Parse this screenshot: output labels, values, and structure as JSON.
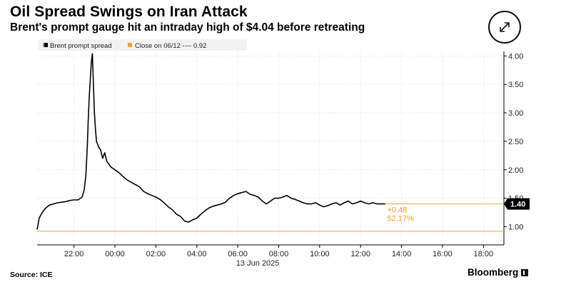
{
  "header": {
    "title": "Oil Spread Swings on Iran Attack",
    "subtitle": "Brent's prompt gauge hit an intraday high of $4.04 before retreating"
  },
  "expand_icon": "expand-arrows-icon",
  "footer": {
    "source": "Source: ICE",
    "brand": "Bloomberg"
  },
  "colors": {
    "line": "#000000",
    "reference": "#f0a030",
    "annotation": "#e8a12e",
    "last_badge_bg": "#000000",
    "grid": "#cccccc"
  },
  "chart_data": {
    "type": "line",
    "title": "Oil Spread Swings on Iran Attack",
    "subtitle": "Brent's prompt gauge hit an intraday high of $4.04 before retreating",
    "legend": [
      {
        "name": "Brent prompt spread",
        "color": "#000000"
      },
      {
        "name": "Close on 06/12 ---- 0.92",
        "color": "#f0a030"
      }
    ],
    "x_unit": "hours since 00:00 on 13 Jun 2025",
    "xlim": [
      -3.8,
      19.0
    ],
    "ylim": [
      0.68,
      4.08
    ],
    "x_ticks": [
      {
        "x": -2,
        "label": "22:00"
      },
      {
        "x": 0,
        "label": "00:00"
      },
      {
        "x": 2,
        "label": "02:00"
      },
      {
        "x": 4,
        "label": "04:00"
      },
      {
        "x": 6,
        "label": "06:00"
      },
      {
        "x": 8,
        "label": "08:00"
      },
      {
        "x": 10,
        "label": "10:00"
      },
      {
        "x": 12,
        "label": "12:00"
      },
      {
        "x": 14,
        "label": "14:00"
      },
      {
        "x": 16,
        "label": "16:00"
      },
      {
        "x": 18,
        "label": "18:00"
      }
    ],
    "x_sublabel": "13 Jun 2025",
    "y_ticks": [
      {
        "y": 1.0,
        "label": "1.00"
      },
      {
        "y": 1.5,
        "label": "1.50"
      },
      {
        "y": 2.0,
        "label": "2.00"
      },
      {
        "y": 2.5,
        "label": "2.50"
      },
      {
        "y": 3.0,
        "label": "3.00"
      },
      {
        "y": 3.5,
        "label": "3.50"
      },
      {
        "y": 4.0,
        "label": "4.00"
      }
    ],
    "series": [
      {
        "name": "Brent prompt spread",
        "x": [
          -3.8,
          -3.7,
          -3.55,
          -3.4,
          -3.2,
          -3.0,
          -2.8,
          -2.6,
          -2.4,
          -2.2,
          -2.0,
          -1.8,
          -1.6,
          -1.5,
          -1.42,
          -1.35,
          -1.3,
          -1.25,
          -1.2,
          -1.15,
          -1.1,
          -1.05,
          -1.0,
          -0.95,
          -0.9,
          -0.8,
          -0.7,
          -0.6,
          -0.5,
          -0.4,
          -0.3,
          -0.2,
          0.0,
          0.2,
          0.4,
          0.6,
          0.8,
          1.0,
          1.2,
          1.4,
          1.6,
          1.8,
          2.0,
          2.2,
          2.4,
          2.6,
          2.8,
          3.0,
          3.2,
          3.4,
          3.6,
          3.8,
          4.0,
          4.2,
          4.4,
          4.6,
          4.8,
          5.0,
          5.2,
          5.4,
          5.6,
          5.8,
          6.0,
          6.2,
          6.4,
          6.6,
          6.8,
          7.0,
          7.2,
          7.4,
          7.6,
          7.8,
          8.0,
          8.2,
          8.4,
          8.6,
          8.8,
          9.0,
          9.2,
          9.4,
          9.6,
          9.8,
          10.0,
          10.2,
          10.4,
          10.6,
          10.8,
          11.0,
          11.2,
          11.4,
          11.6,
          11.8,
          12.0,
          12.2,
          12.4,
          12.6,
          12.8,
          13.0,
          13.2
        ],
        "y": [
          0.95,
          1.15,
          1.25,
          1.32,
          1.38,
          1.4,
          1.42,
          1.43,
          1.44,
          1.46,
          1.47,
          1.47,
          1.52,
          1.65,
          1.9,
          2.4,
          2.9,
          3.3,
          3.6,
          3.9,
          4.04,
          3.5,
          3.0,
          2.7,
          2.5,
          2.4,
          2.35,
          2.2,
          2.3,
          2.15,
          2.1,
          2.05,
          2.0,
          1.95,
          1.88,
          1.82,
          1.78,
          1.74,
          1.7,
          1.62,
          1.58,
          1.55,
          1.52,
          1.48,
          1.42,
          1.35,
          1.3,
          1.22,
          1.18,
          1.1,
          1.08,
          1.12,
          1.15,
          1.22,
          1.28,
          1.33,
          1.36,
          1.38,
          1.4,
          1.43,
          1.5,
          1.55,
          1.58,
          1.6,
          1.62,
          1.57,
          1.55,
          1.52,
          1.45,
          1.4,
          1.45,
          1.5,
          1.5,
          1.52,
          1.55,
          1.5,
          1.48,
          1.45,
          1.42,
          1.4,
          1.4,
          1.42,
          1.38,
          1.35,
          1.37,
          1.4,
          1.42,
          1.38,
          1.42,
          1.45,
          1.4,
          1.42,
          1.45,
          1.42,
          1.4,
          1.42,
          1.4,
          1.4,
          1.4
        ]
      }
    ],
    "reference_line": {
      "name": "Close on 06/12",
      "value": 0.92
    },
    "last_value_line": {
      "value": 1.4,
      "label": "1.40"
    },
    "annotations": [
      {
        "text": "+0.48",
        "x": 13.3,
        "y": 1.3
      },
      {
        "text": "52.17%",
        "x": 13.3,
        "y": 1.15
      }
    ]
  }
}
